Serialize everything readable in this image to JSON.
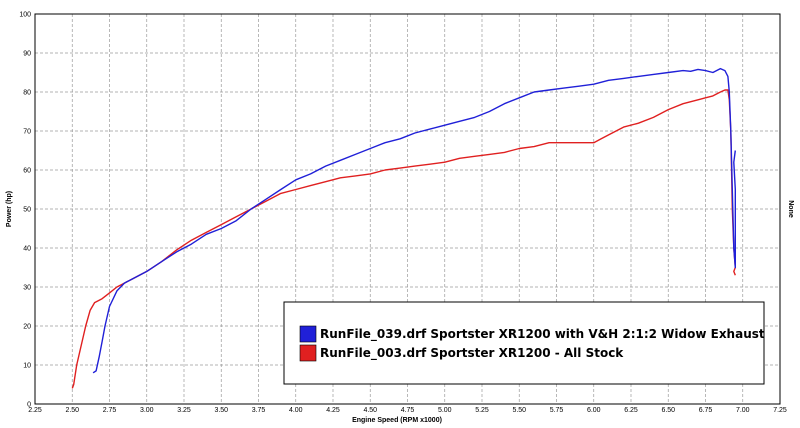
{
  "chart_data": {
    "type": "line",
    "xlabel": "Engine Speed (RPM x1000)",
    "ylabel": "Power (hp)",
    "y2label": "None",
    "xlim": [
      2.25,
      7.25
    ],
    "ylim": [
      0,
      100
    ],
    "x_ticks": [
      "2.25",
      "2.50",
      "2.75",
      "3.00",
      "3.25",
      "3.50",
      "3.75",
      "4.00",
      "4.25",
      "4.50",
      "4.75",
      "5.00",
      "5.25",
      "5.50",
      "5.75",
      "6.00",
      "6.25",
      "6.50",
      "6.75",
      "7.00",
      "7.25"
    ],
    "y_ticks": [
      "0",
      "10",
      "20",
      "30",
      "40",
      "50",
      "60",
      "70",
      "80",
      "90",
      "100"
    ],
    "grid": true,
    "legend_position": "bottom-right",
    "series": [
      {
        "name": "RunFile_039.drf Sportster XR1200 with V&H 2:1:2 Widow Exhaust",
        "color": "#2020d8",
        "x": [
          2.64,
          2.66,
          2.68,
          2.7,
          2.72,
          2.75,
          2.8,
          2.85,
          2.9,
          3.0,
          3.1,
          3.2,
          3.3,
          3.4,
          3.5,
          3.6,
          3.7,
          3.8,
          3.9,
          4.0,
          4.1,
          4.2,
          4.3,
          4.4,
          4.5,
          4.6,
          4.7,
          4.8,
          4.9,
          5.0,
          5.1,
          5.2,
          5.3,
          5.4,
          5.5,
          5.6,
          5.7,
          5.8,
          5.9,
          6.0,
          6.1,
          6.2,
          6.3,
          6.4,
          6.5,
          6.6,
          6.65,
          6.7,
          6.75,
          6.8,
          6.85,
          6.88,
          6.9,
          6.91,
          6.92,
          6.93,
          6.94,
          6.95,
          6.95,
          6.94,
          6.95
        ],
        "y": [
          8,
          8.5,
          12,
          16,
          20,
          25,
          29,
          31,
          32,
          34,
          36.5,
          39,
          41,
          43.5,
          45,
          47,
          50,
          52.5,
          55,
          57.5,
          59,
          61,
          62.5,
          64,
          65.5,
          67,
          68,
          69.5,
          70.5,
          71.5,
          72.5,
          73.5,
          75,
          77,
          78.5,
          80,
          80.5,
          81,
          81.5,
          82,
          83,
          83.5,
          84,
          84.5,
          85,
          85.5,
          85.3,
          85.8,
          85.5,
          85,
          86,
          85.5,
          84,
          80,
          70,
          55,
          40,
          35,
          55,
          62,
          65
        ]
      },
      {
        "name": "RunFile_003.drf Sportster XR1200 - All Stock",
        "color": "#e02020",
        "x": [
          2.5,
          2.51,
          2.53,
          2.56,
          2.59,
          2.62,
          2.65,
          2.7,
          2.75,
          2.8,
          2.85,
          2.9,
          3.0,
          3.1,
          3.2,
          3.3,
          3.4,
          3.5,
          3.6,
          3.7,
          3.8,
          3.9,
          4.0,
          4.1,
          4.2,
          4.3,
          4.4,
          4.5,
          4.6,
          4.7,
          4.8,
          4.9,
          5.0,
          5.1,
          5.2,
          5.3,
          5.4,
          5.5,
          5.6,
          5.7,
          5.8,
          5.9,
          6.0,
          6.05,
          6.1,
          6.2,
          6.3,
          6.4,
          6.5,
          6.6,
          6.7,
          6.75,
          6.8,
          6.85,
          6.88,
          6.9,
          6.91,
          6.92,
          6.93,
          6.94,
          6.95,
          6.94,
          6.95
        ],
        "y": [
          4,
          5,
          10,
          15,
          20,
          24,
          26,
          27,
          28.5,
          30,
          31,
          32,
          34,
          36.5,
          39.5,
          42,
          44,
          46,
          48,
          50,
          52,
          54,
          55,
          56,
          57,
          58,
          58.5,
          59,
          60,
          60.5,
          61,
          61.5,
          62,
          63,
          63.5,
          64,
          64.5,
          65.5,
          66,
          67,
          67,
          67,
          67,
          68,
          69,
          71,
          72,
          73.5,
          75.5,
          77,
          78,
          78.5,
          79,
          80,
          80.5,
          80.5,
          78,
          70,
          50,
          40,
          35,
          34,
          33
        ]
      }
    ]
  }
}
